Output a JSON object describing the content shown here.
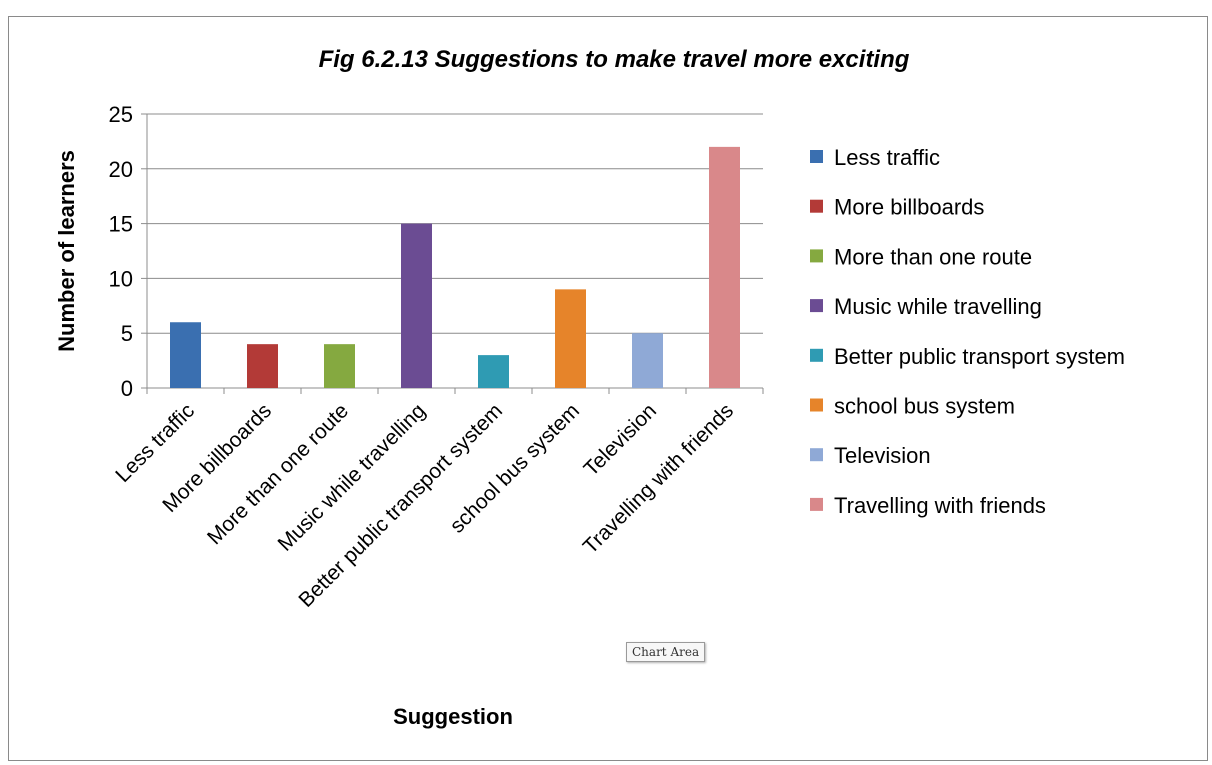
{
  "chart_data": {
    "type": "bar",
    "title": "Fig 6.2.13 Suggestions to make travel more exciting",
    "xlabel": "Suggestion",
    "ylabel": "Number of learners",
    "ylim": [
      0,
      25
    ],
    "yticks": [
      0,
      5,
      10,
      15,
      20,
      25
    ],
    "grid": true,
    "legend_position": "right",
    "categories": [
      "Less traffic",
      "More billboards",
      "More than one route",
      "Music while travelling",
      "Better public transport system",
      "school bus system",
      "Television",
      "Travelling with friends"
    ],
    "values": [
      6,
      4,
      4,
      15,
      3,
      9,
      5,
      22
    ],
    "colors": [
      "#3a6fb0",
      "#b33a37",
      "#85a940",
      "#6b4c93",
      "#2f9bb3",
      "#e6842a",
      "#8fa9d6",
      "#d9888a"
    ]
  },
  "ui": {
    "tooltip_label": "Chart Area"
  }
}
